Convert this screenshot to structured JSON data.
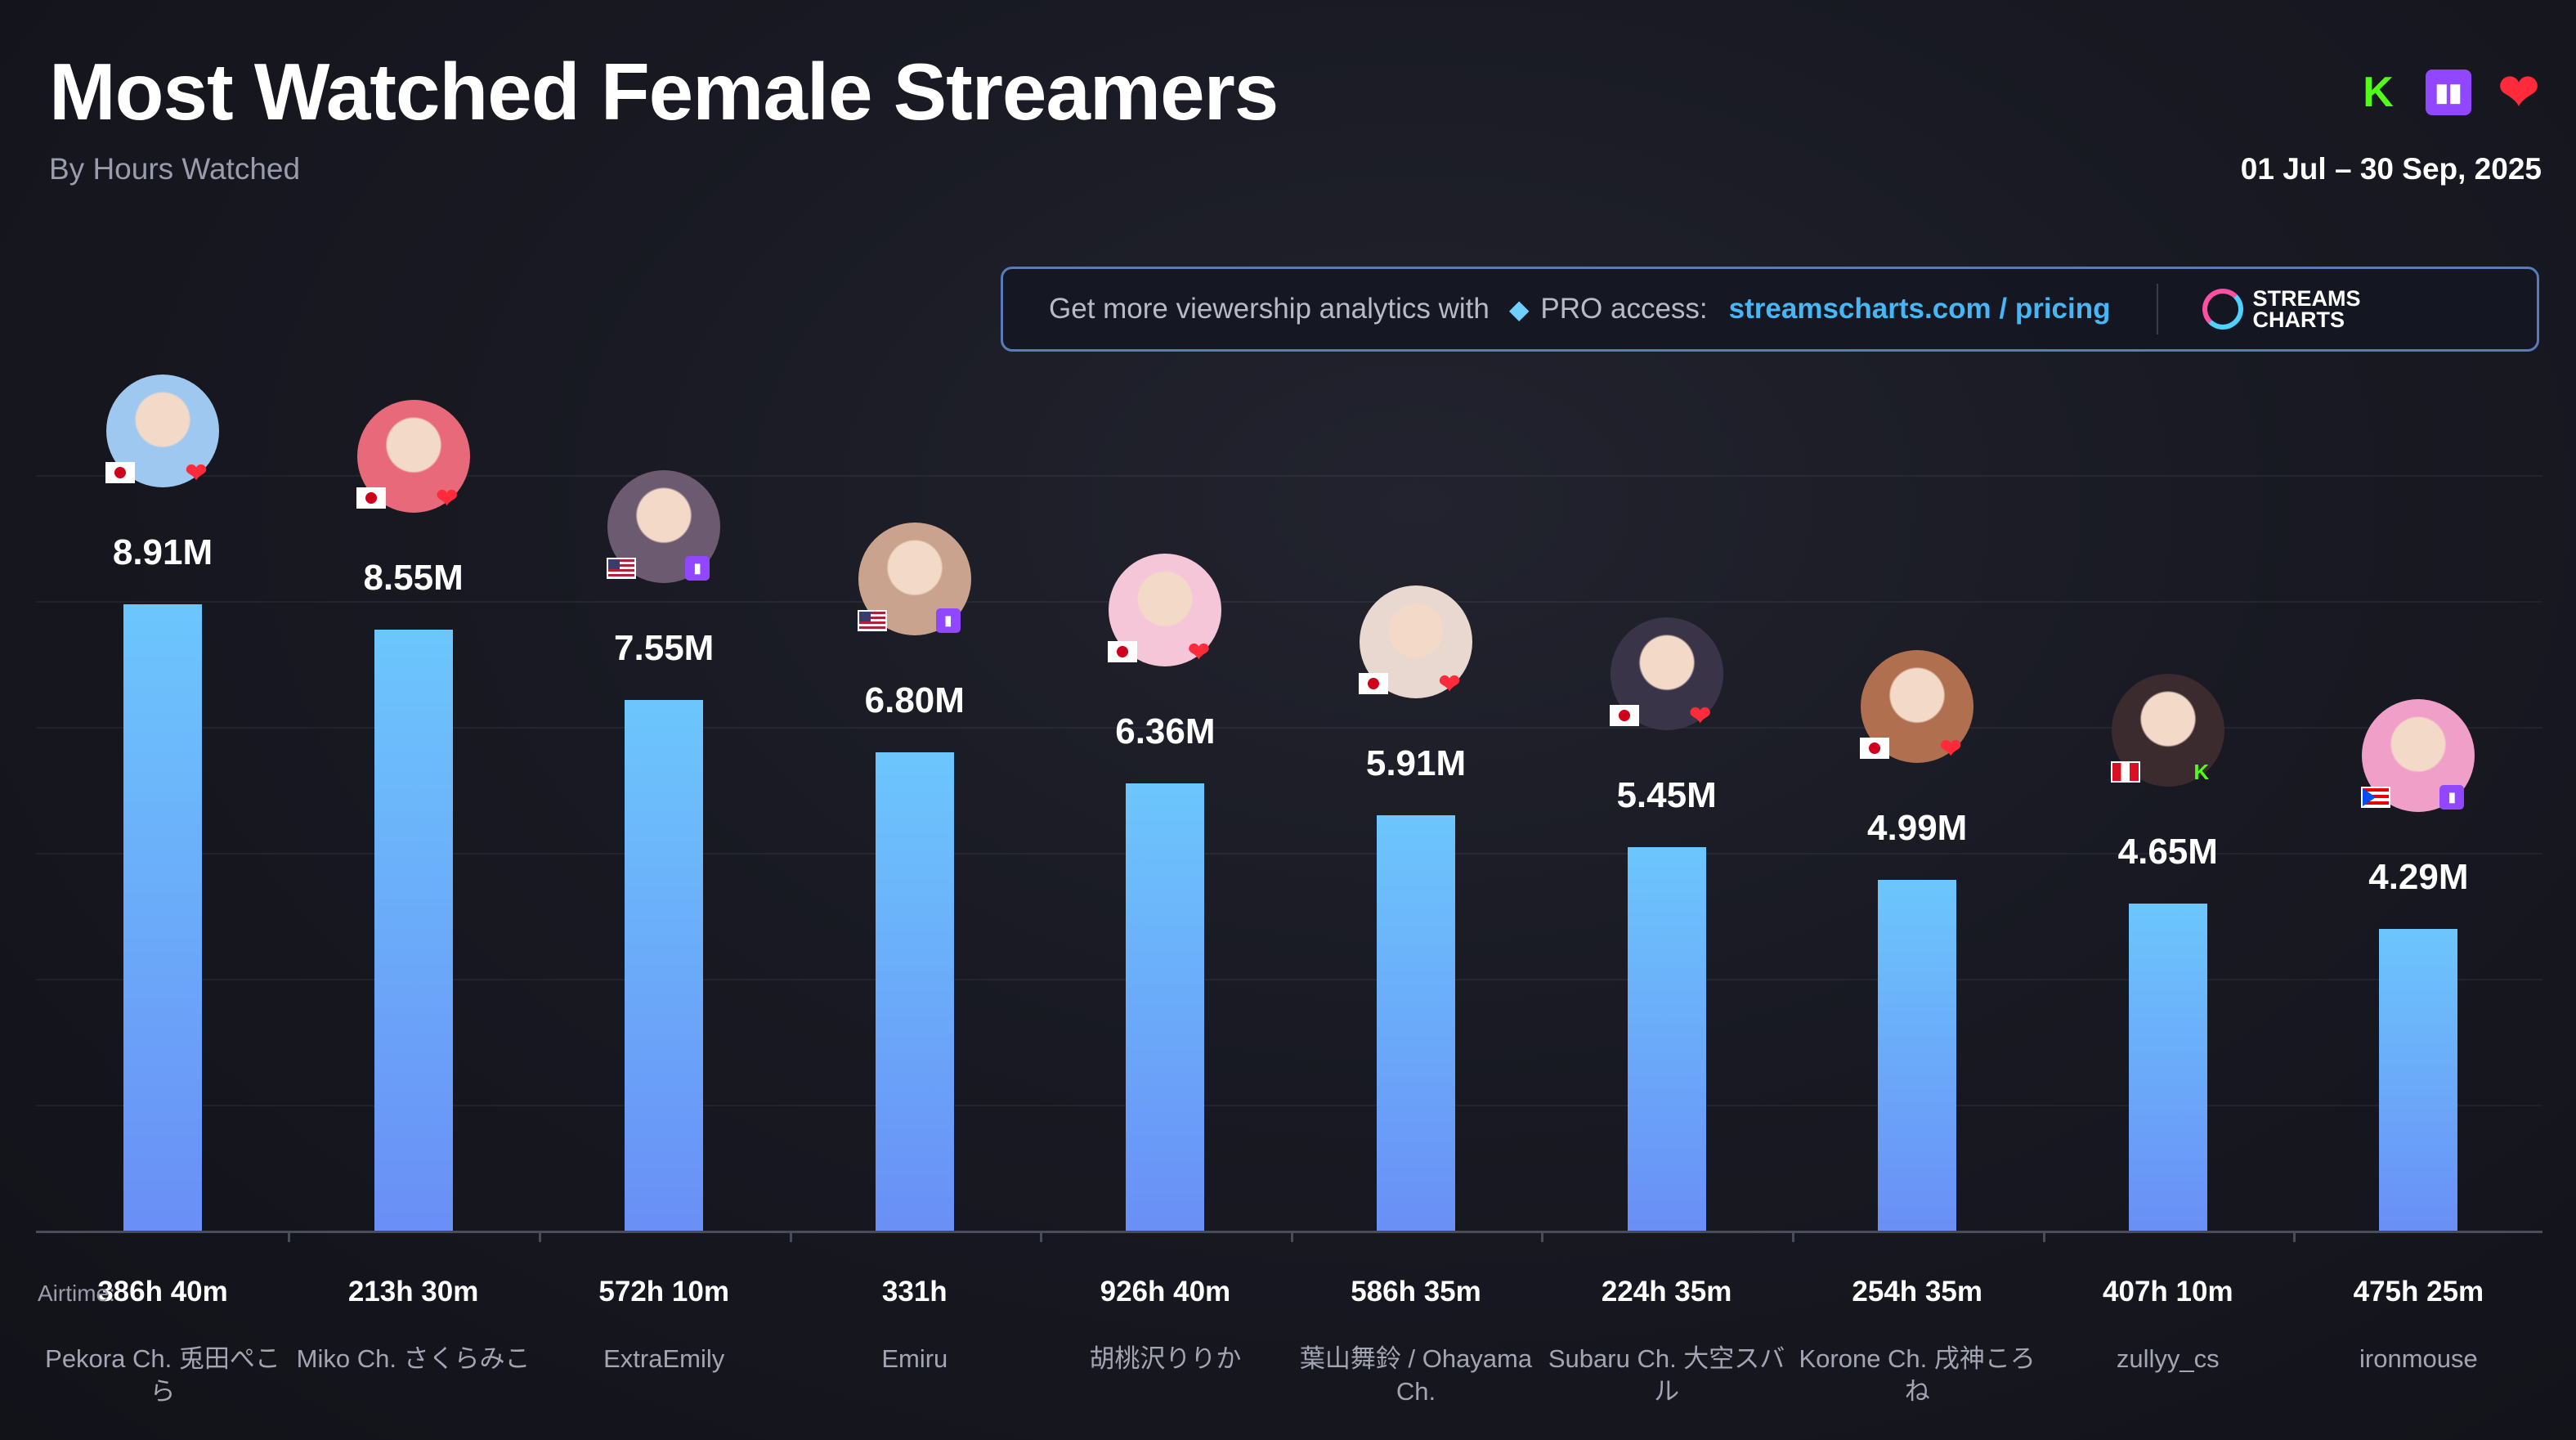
{
  "header": {
    "title": "Most Watched Female Streamers",
    "subtitle": "By Hours Watched",
    "date_range": "01 Jul – 30 Sep, 2025",
    "platform_icons": [
      "kick-icon",
      "twitch-icon",
      "youtube-icon"
    ]
  },
  "banner": {
    "text": "Get more viewership analytics with",
    "pro": "PRO access:",
    "link": "streamscharts.com / pricing",
    "logo_line1": "STREAMS",
    "logo_line2": "CHARTS"
  },
  "airtime_label": "Airtime:",
  "colors": {
    "bar_top": "#6cc6fc",
    "bar_bottom": "#6a8ff6",
    "background": "#14151e",
    "link": "#46b6f5"
  },
  "chart_data": {
    "type": "bar",
    "title": "Most Watched Female Streamers",
    "subtitle": "By Hours Watched",
    "ylabel": "Hours Watched",
    "ylim": [
      0,
      9.5
    ],
    "unit": "M",
    "categories": [
      "Pekora Ch. 兎田ぺこら",
      "Miko Ch. さくらみこ",
      "ExtraEmily",
      "Emiru",
      "胡桃沢りりか",
      "葉山舞鈴 / Ohayama Ch.",
      "Subaru Ch. 大空スバル",
      "Korone Ch. 戌神ころね",
      "zullyy_cs",
      "ironmouse"
    ],
    "values": [
      8.91,
      8.55,
      7.55,
      6.8,
      6.36,
      5.91,
      5.45,
      4.99,
      4.65,
      4.29
    ],
    "value_labels": [
      "8.91M",
      "8.55M",
      "7.55M",
      "6.80M",
      "6.36M",
      "5.91M",
      "5.45M",
      "4.99M",
      "4.65M",
      "4.29M"
    ],
    "airtime": [
      "386h 40m",
      "213h 30m",
      "572h 10m",
      "331h",
      "926h 40m",
      "586h 35m",
      "224h 35m",
      "254h 35m",
      "407h 10m",
      "475h 25m"
    ],
    "countries": [
      "jp",
      "jp",
      "us",
      "us",
      "jp",
      "jp",
      "jp",
      "jp",
      "pe",
      "pr"
    ],
    "platforms": [
      "youtube",
      "youtube",
      "twitch",
      "twitch",
      "youtube",
      "youtube",
      "youtube",
      "youtube",
      "kick",
      "twitch"
    ],
    "avatar_colors": [
      "#9ec8f0",
      "#e86a7a",
      "#6b5a70",
      "#c9a38e",
      "#f5c6d8",
      "#e8d8d0",
      "#3a3448",
      "#b07050",
      "#3b2a2e",
      "#f0a0c8"
    ],
    "grid": true
  }
}
